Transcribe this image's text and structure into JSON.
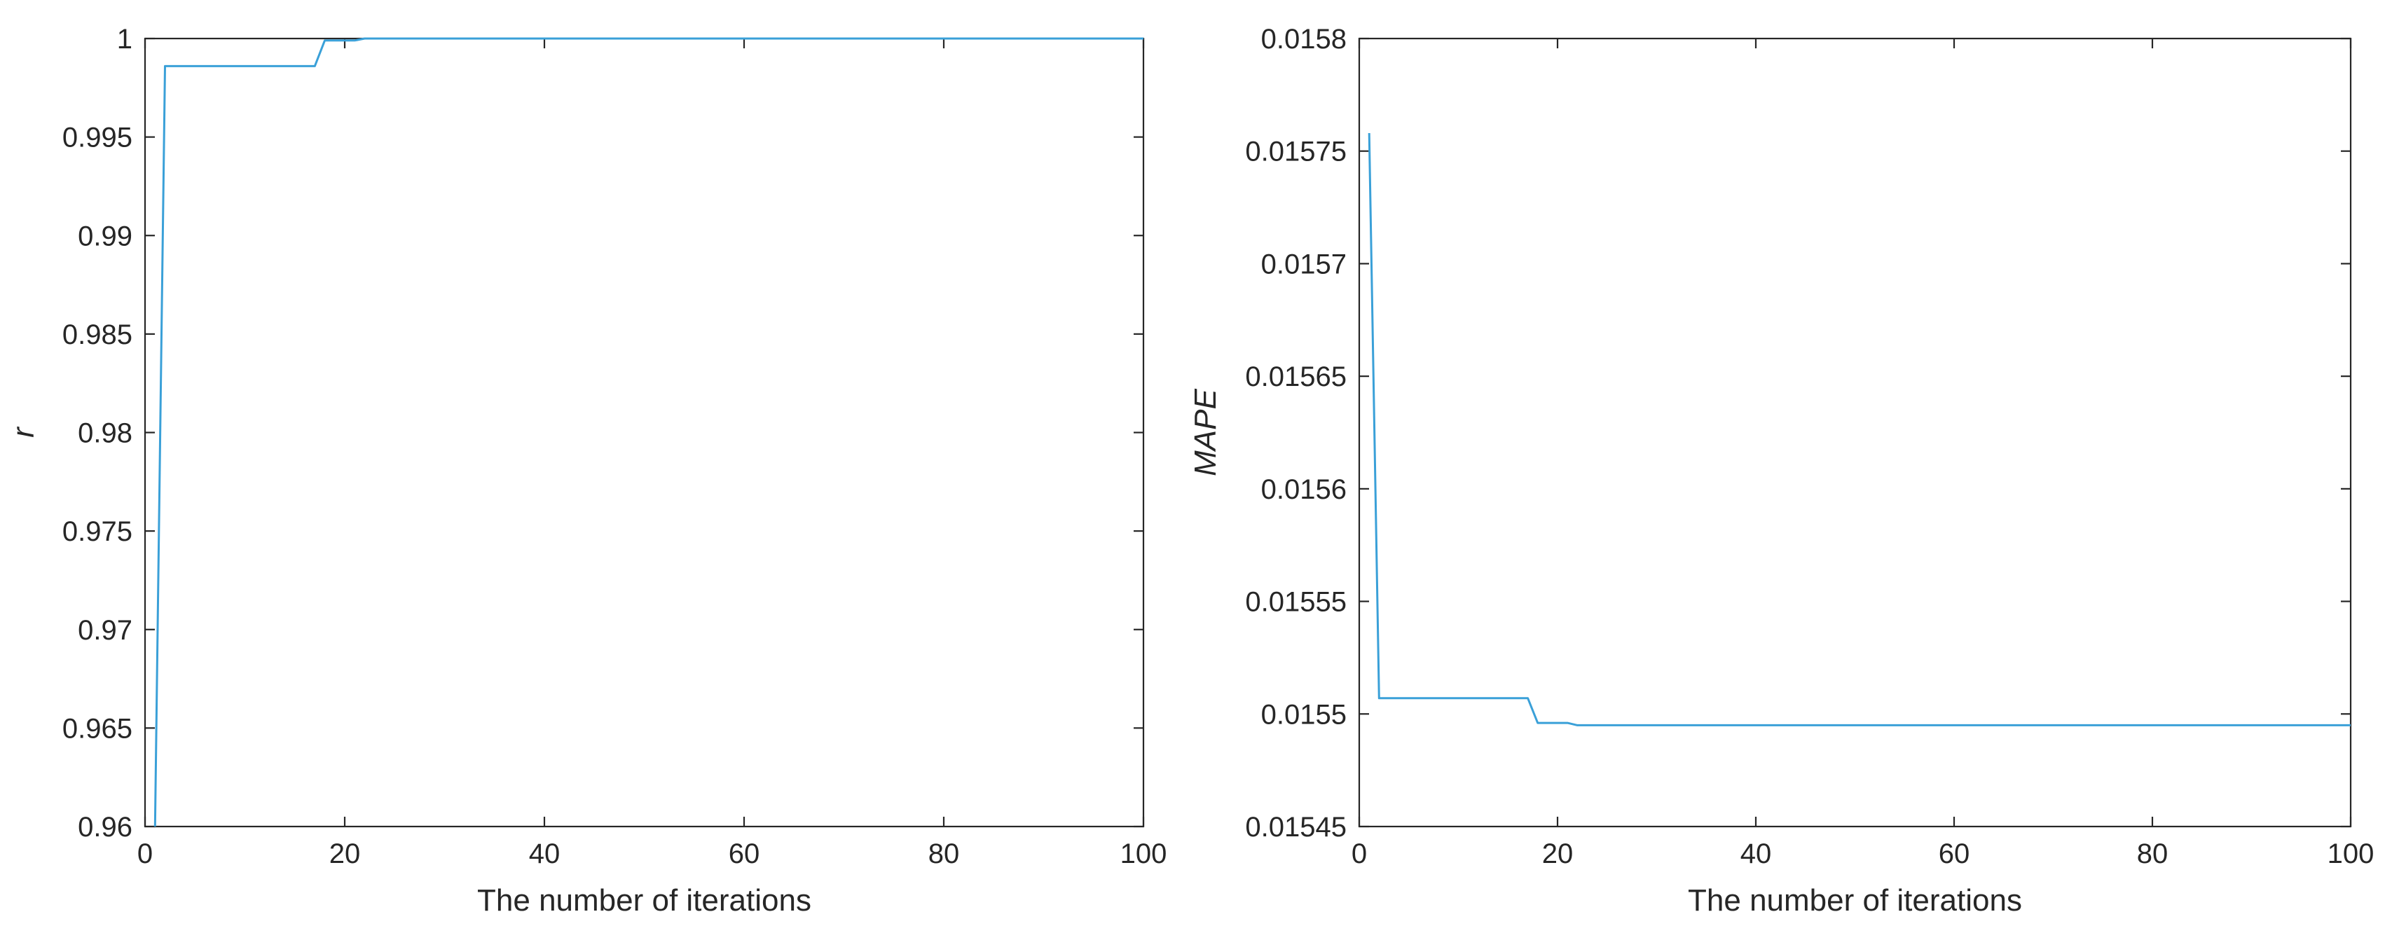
{
  "chart_data": [
    {
      "type": "line",
      "title": "",
      "xlabel": "The number of iterations",
      "ylabel": "r",
      "xlim": [
        0,
        100
      ],
      "ylim": [
        0.96,
        1
      ],
      "xticks": [
        0,
        20,
        40,
        60,
        80,
        100
      ],
      "xtick_labels": [
        "0",
        "20",
        "40",
        "60",
        "80",
        "100"
      ],
      "yticks": [
        0.96,
        0.965,
        0.97,
        0.975,
        0.98,
        0.985,
        0.99,
        0.995,
        1
      ],
      "ytick_labels": [
        "0.96",
        "0.965",
        "0.97",
        "0.975",
        "0.98",
        "0.985",
        "0.99",
        "0.995",
        "1"
      ],
      "grid": false,
      "series": [
        {
          "color": "#3aa0d8",
          "x": [
            1,
            2,
            3,
            17,
            18,
            20,
            21,
            22,
            100
          ],
          "y": [
            0.96,
            0.9986,
            0.9986,
            0.9986,
            0.9999,
            0.9999,
            0.9999,
            1.0,
            1.0
          ]
        }
      ]
    },
    {
      "type": "line",
      "title": "",
      "xlabel": "The number of iterations",
      "ylabel": "MAPE",
      "xlim": [
        0,
        100
      ],
      "ylim": [
        0.01545,
        0.0158
      ],
      "xticks": [
        0,
        20,
        40,
        60,
        80,
        100
      ],
      "xtick_labels": [
        "0",
        "20",
        "40",
        "60",
        "80",
        "100"
      ],
      "yticks": [
        0.01545,
        0.0155,
        0.01555,
        0.0156,
        0.01565,
        0.0157,
        0.01575,
        0.0158
      ],
      "ytick_labels": [
        "0.01545",
        "0.0155",
        "0.01555",
        "0.0156",
        "0.01565",
        "0.0157",
        "0.01575",
        "0.0158"
      ],
      "grid": false,
      "series": [
        {
          "color": "#3aa0d8",
          "x": [
            1,
            2,
            3,
            17,
            18,
            21,
            22,
            100
          ],
          "y": [
            0.015758,
            0.015507,
            0.015507,
            0.015507,
            0.015496,
            0.015496,
            0.015495,
            0.015495
          ]
        }
      ]
    }
  ]
}
